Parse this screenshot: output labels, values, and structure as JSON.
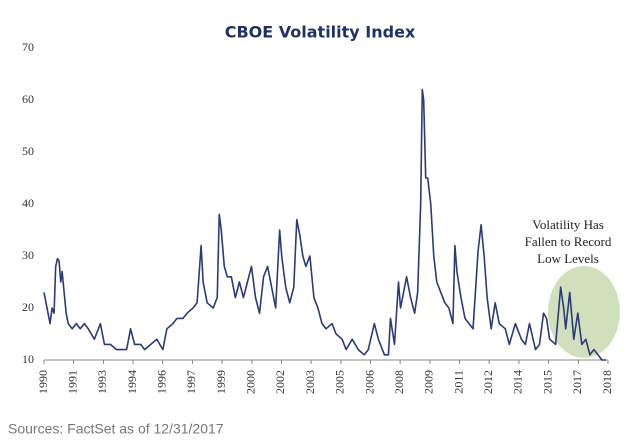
{
  "chart_data": {
    "type": "line",
    "title": "CBOE Volatility Index",
    "x": [
      1990.0,
      1990.1,
      1990.2,
      1990.3,
      1990.4,
      1990.5,
      1990.58,
      1990.67,
      1990.75,
      1990.83,
      1990.9,
      1991.0,
      1991.1,
      1991.2,
      1991.4,
      1991.6,
      1991.8,
      1992.0,
      1992.2,
      1992.5,
      1992.8,
      1993.0,
      1993.3,
      1993.6,
      1993.9,
      1994.1,
      1994.3,
      1994.5,
      1994.8,
      1995.0,
      1995.3,
      1995.6,
      1995.9,
      1996.1,
      1996.4,
      1996.6,
      1996.9,
      1997.1,
      1997.4,
      1997.6,
      1997.8,
      1997.9,
      1998.1,
      1998.4,
      1998.6,
      1998.7,
      1998.8,
      1998.95,
      1999.1,
      1999.3,
      1999.5,
      1999.7,
      1999.9,
      2000.1,
      2000.3,
      2000.5,
      2000.7,
      2000.9,
      2001.1,
      2001.3,
      2001.5,
      2001.7,
      2001.8,
      2002.0,
      2002.2,
      2002.4,
      2002.55,
      2002.7,
      2002.85,
      2003.0,
      2003.2,
      2003.4,
      2003.6,
      2003.8,
      2004.0,
      2004.3,
      2004.5,
      2004.8,
      2005.0,
      2005.3,
      2005.6,
      2005.9,
      2006.1,
      2006.4,
      2006.6,
      2006.9,
      2007.1,
      2007.2,
      2007.4,
      2007.6,
      2007.7,
      2007.9,
      2008.0,
      2008.2,
      2008.4,
      2008.55,
      2008.7,
      2008.78,
      2008.85,
      2008.95,
      2009.05,
      2009.2,
      2009.35,
      2009.5,
      2009.7,
      2009.9,
      2010.1,
      2010.3,
      2010.4,
      2010.5,
      2010.7,
      2010.9,
      2011.1,
      2011.3,
      2011.55,
      2011.7,
      2011.85,
      2012.0,
      2012.2,
      2012.4,
      2012.6,
      2012.9,
      2013.1,
      2013.4,
      2013.7,
      2013.9,
      2014.1,
      2014.4,
      2014.6,
      2014.8,
      2014.95,
      2015.1,
      2015.4,
      2015.65,
      2015.8,
      2015.9,
      2016.1,
      2016.3,
      2016.5,
      2016.7,
      2016.9,
      2017.1,
      2017.3,
      2017.5,
      2017.7,
      2017.9
    ],
    "values": [
      23,
      21,
      19,
      17,
      20,
      19,
      28,
      29.5,
      29,
      25,
      27,
      23,
      19,
      17,
      16,
      17,
      16,
      17,
      16,
      14,
      17,
      13,
      13,
      12,
      12,
      12,
      16,
      13,
      13,
      12,
      13,
      14,
      12,
      16,
      17,
      18,
      18,
      19,
      20,
      21,
      32,
      25,
      21,
      20,
      22,
      38,
      35,
      28,
      26,
      26,
      22,
      25,
      22,
      25,
      28,
      22,
      19,
      26,
      28,
      24,
      20,
      35,
      30,
      24,
      21,
      24,
      37,
      34,
      30,
      28,
      30,
      22,
      20,
      17,
      16,
      17,
      15,
      14,
      12,
      14,
      12,
      11,
      12,
      17,
      14,
      11,
      11,
      18,
      13,
      25,
      20,
      24,
      26,
      22,
      19,
      23,
      40,
      62,
      60,
      45,
      45,
      40,
      30,
      25,
      23,
      21,
      20,
      17,
      32,
      27,
      22,
      18,
      17,
      16,
      31,
      36,
      30,
      22,
      16,
      21,
      17,
      16,
      13,
      17,
      14,
      13,
      17,
      12,
      13,
      19,
      18,
      14,
      13,
      24,
      20,
      16,
      23,
      14,
      19,
      13,
      14,
      11,
      12,
      11,
      10,
      10
    ],
    "color": "#2b3a78",
    "xlim": [
      1990,
      2018
    ],
    "xticks": [
      1990,
      {
        "value": 1991.47,
        "label": "1991"
      },
      {
        "value": 1992.95,
        "label": "1993"
      },
      {
        "value": 1994.42,
        "label": "1994"
      },
      {
        "value": 1995.89,
        "label": "1996"
      },
      {
        "value": 1997.37,
        "label": "1997"
      },
      {
        "value": 1998.84,
        "label": "1999"
      },
      {
        "value": 2000.32,
        "label": "2000"
      },
      {
        "value": 2001.79,
        "label": "2002"
      },
      {
        "value": 2003.26,
        "label": "2003"
      },
      {
        "value": 2004.74,
        "label": "2005"
      },
      {
        "value": 2006.21,
        "label": "2006"
      },
      {
        "value": 2007.68,
        "label": "2008"
      },
      {
        "value": 2009.16,
        "label": "2009"
      },
      {
        "value": 2010.63,
        "label": "2011"
      },
      {
        "value": 2012.1,
        "label": "2012"
      },
      {
        "value": 2013.58,
        "label": "2014"
      },
      {
        "value": 2015.05,
        "label": "2015"
      },
      {
        "value": 2016.53,
        "label": "2017"
      },
      2018
    ],
    "ylim": [
      10,
      70
    ],
    "yticks": [
      10,
      20,
      30,
      40,
      50,
      60,
      70
    ],
    "grid": false,
    "annotation": [
      "Volatility Has",
      "Fallen to Record",
      "Low Levels"
    ],
    "source": "Sources: FactSet as of 12/31/2017"
  }
}
